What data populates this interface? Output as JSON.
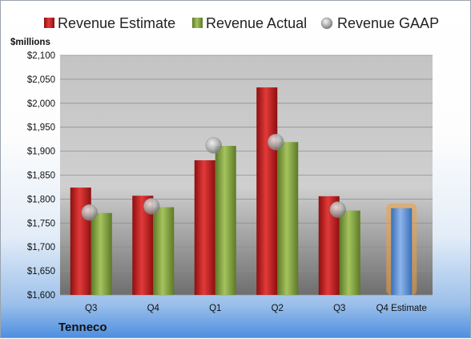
{
  "company": "Tenneco",
  "chart_data": {
    "type": "bar",
    "unit_label": "$millions",
    "categories": [
      "Q3",
      "Q4",
      "Q1",
      "Q2",
      "Q3",
      "Q4 Estimate"
    ],
    "ylim": [
      1600,
      2100
    ],
    "yticks": [
      1600,
      1650,
      1700,
      1750,
      1800,
      1850,
      1900,
      1950,
      2000,
      2050,
      2100
    ],
    "ytick_labels": [
      "$1,600",
      "$1,650",
      "$1,700",
      "$1,750",
      "$1,800",
      "$1,850",
      "$1,900",
      "$1,950",
      "$2,000",
      "$2,050",
      "$2,100"
    ],
    "grid": true,
    "legend_position": "top",
    "series": [
      {
        "name": "Revenue Estimate",
        "type": "bar",
        "color": "#cc1f1f",
        "values": [
          1824,
          1807,
          1881,
          2033,
          1806,
          null
        ]
      },
      {
        "name": "Revenue Actual",
        "type": "bar",
        "color": "#86a543",
        "values": [
          1771,
          1783,
          1911,
          1919,
          1776,
          null
        ]
      },
      {
        "name": "Revenue GAAP",
        "type": "marker",
        "color": "#b8b8b8",
        "values": [
          1772,
          1785,
          1912,
          1919,
          1778,
          null
        ]
      },
      {
        "name": "Q4 Estimate",
        "type": "bar",
        "color": "#5b8fd4",
        "highlight": "#f0a040",
        "values": [
          null,
          null,
          null,
          null,
          null,
          1781
        ]
      }
    ]
  }
}
